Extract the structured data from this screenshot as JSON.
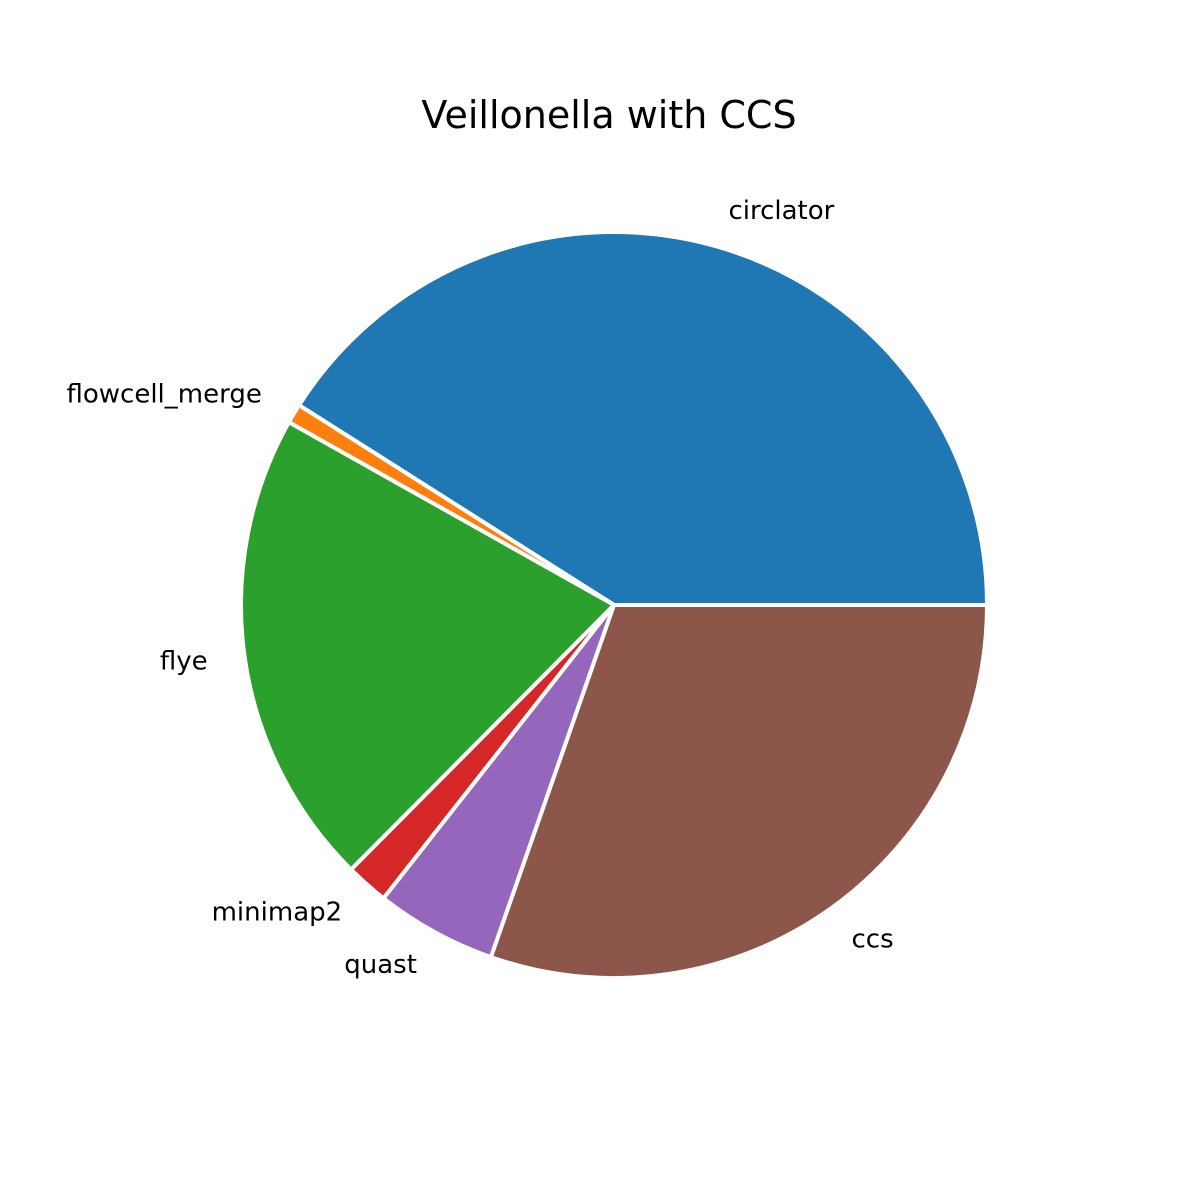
{
  "chart_data": {
    "type": "pie",
    "title": "Veillonella with CCS",
    "labels": [
      "circlator",
      "flowcell_merge",
      "flye",
      "minimap2",
      "quast",
      "ccs"
    ],
    "values": [
      41.0,
      0.85,
      20.7,
      1.85,
      5.25,
      30.35
    ],
    "colors": [
      "#1f77b4",
      "#ff7f0e",
      "#2ca02c",
      "#d62728",
      "#9467bd",
      "#8c564b"
    ],
    "start_angle_deg": 0,
    "direction": "counterclockwise"
  }
}
